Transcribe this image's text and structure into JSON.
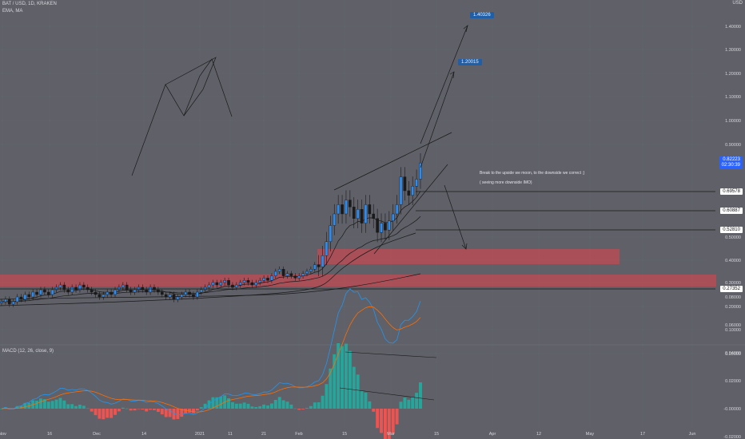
{
  "header": {
    "symbol": "BAT / USD, 1D, KRAKEN",
    "indicator": "EMA, MA",
    "currency": "USD"
  },
  "price_axis": {
    "ticks": [
      "1.40000",
      "1.30000",
      "1.20000",
      "1.10000",
      "1.00000",
      "0.90000",
      "0.50000",
      "0.40000",
      "0.30000",
      "0.20000",
      "0.10000",
      "0.00000"
    ],
    "tick_values": [
      1.4,
      1.3,
      1.2,
      1.1,
      1.0,
      0.9,
      0.5,
      0.4,
      0.3,
      0.2,
      0.1,
      0.0
    ]
  },
  "price_labels": {
    "current": "0.82223",
    "countdown": "02:30:39",
    "levels": [
      {
        "text": "0.69578",
        "value": 0.69578
      },
      {
        "text": "0.60887",
        "value": 0.60887
      },
      {
        "text": "0.52810",
        "value": 0.5281
      },
      {
        "text": "0.27352",
        "value": 0.27352
      }
    ]
  },
  "targets": [
    {
      "text": "1.40326",
      "value": 1.40326
    },
    {
      "text": "1.20015",
      "value": 1.20015
    }
  ],
  "annotations": {
    "line1": "Break to the upside we moon, to the downside we correct ;)",
    "line2": "( seeing more downside IMO)"
  },
  "macd": {
    "title": "MACD (12, 26, close, 9)",
    "ticks": [
      "0.08000",
      "0.06000",
      "0.04000",
      "0.02000",
      "-0.00000",
      "-0.02000"
    ],
    "tick_values": [
      0.08,
      0.06,
      0.04,
      0.02,
      0.0,
      -0.02
    ]
  },
  "time_axis": {
    "labels": [
      "Nov",
      "16",
      "Dec",
      "14",
      "2021",
      "11",
      "21",
      "Feb",
      "15",
      "Mar",
      "15",
      "Apr",
      "12",
      "May",
      "17",
      "Jun"
    ]
  },
  "chart_data": {
    "type": "candlestick",
    "title": "BAT / USD, 1D, KRAKEN",
    "ylim": [
      -0.05,
      1.45
    ],
    "closes": [
      0.22,
      0.23,
      0.21,
      0.22,
      0.24,
      0.23,
      0.25,
      0.24,
      0.26,
      0.25,
      0.27,
      0.26,
      0.25,
      0.27,
      0.28,
      0.29,
      0.27,
      0.26,
      0.28,
      0.27,
      0.29,
      0.28,
      0.27,
      0.26,
      0.25,
      0.24,
      0.25,
      0.26,
      0.25,
      0.27,
      0.28,
      0.29,
      0.27,
      0.26,
      0.27,
      0.28,
      0.27,
      0.26,
      0.28,
      0.27,
      0.26,
      0.25,
      0.24,
      0.25,
      0.23,
      0.24,
      0.25,
      0.26,
      0.25,
      0.24,
      0.26,
      0.27,
      0.28,
      0.29,
      0.3,
      0.29,
      0.3,
      0.31,
      0.29,
      0.28,
      0.29,
      0.3,
      0.31,
      0.3,
      0.29,
      0.3,
      0.31,
      0.32,
      0.31,
      0.33,
      0.35,
      0.36,
      0.33,
      0.34,
      0.33,
      0.32,
      0.33,
      0.34,
      0.35,
      0.36,
      0.38,
      0.37,
      0.42,
      0.48,
      0.55,
      0.6,
      0.64,
      0.6,
      0.66,
      0.63,
      0.58,
      0.62,
      0.56,
      0.64,
      0.6,
      0.58,
      0.52,
      0.56,
      0.53,
      0.57,
      0.6,
      0.64,
      0.76,
      0.7,
      0.68,
      0.72,
      0.75,
      0.82
    ],
    "colors": {
      "up": "#2d8cf0",
      "down": "#1a1a1a",
      "zone": "#c24a52",
      "macd": "#2196f3",
      "signal": "#ff6d00",
      "hist_up": "#26a69a",
      "hist_down": "#ef5350"
    }
  }
}
